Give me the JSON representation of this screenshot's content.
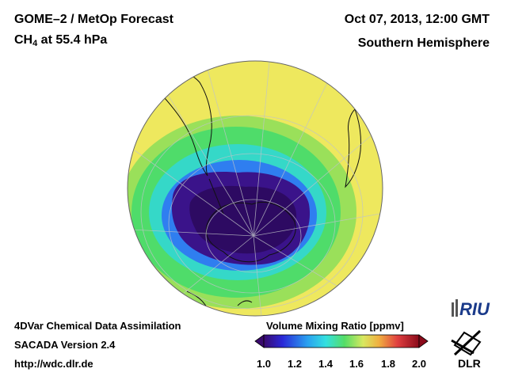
{
  "header": {
    "title_line1": "GOME–2 / MetOp Forecast",
    "species": "CH",
    "species_sub": "4",
    "level": " at 55.4 hPa",
    "date": "Oct 07, 2013, 12:00 GMT",
    "region": "Southern Hemisphere"
  },
  "footer": {
    "line1": "4DVar Chemical Data Assimilation",
    "line2": "SACADA Version 2.4",
    "line3": "http://wdc.dlr.de"
  },
  "colorbar": {
    "title": "Volume Mixing Ratio [ppmv]",
    "ticks": [
      "1.0",
      "1.2",
      "1.4",
      "1.6",
      "1.8",
      "2.0"
    ],
    "min": 1.0,
    "max": 2.0
  },
  "logos": {
    "riu": "RIU",
    "dlr": "DLR"
  },
  "map": {
    "projection": "orthographic",
    "center": "South Pole",
    "colors": {
      "low": "#3a0a6e",
      "mid_low": "#2255dd",
      "cyan": "#33d8e8",
      "green": "#55dd66",
      "yellow": "#f0e860",
      "high": "#8a0a1a"
    }
  }
}
